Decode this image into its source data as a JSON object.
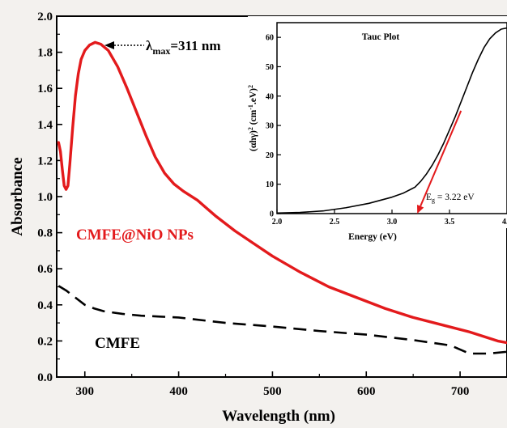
{
  "chart_data": {
    "main": {
      "type": "line",
      "xlabel": "Wavelength (nm)",
      "ylabel": "Absorbance",
      "xlim": [
        270,
        750
      ],
      "ylim": [
        0.0,
        2.0
      ],
      "xticks": [
        300,
        400,
        500,
        600,
        700
      ],
      "yticks": [
        0.0,
        0.2,
        0.4,
        0.6,
        0.8,
        1.0,
        1.2,
        1.4,
        1.6,
        1.8,
        2.0
      ],
      "grid": false,
      "series": [
        {
          "name": "CMFE@NiO NPs",
          "color": "#e31a1c",
          "style": "solid",
          "x": [
            272,
            274,
            276,
            278,
            280,
            282,
            284,
            287,
            290,
            293,
            296,
            300,
            305,
            311,
            317,
            325,
            335,
            345,
            355,
            365,
            375,
            385,
            395,
            405,
            420,
            440,
            460,
            480,
            500,
            530,
            560,
            590,
            620,
            650,
            680,
            710,
            740,
            750
          ],
          "y": [
            1.3,
            1.25,
            1.15,
            1.06,
            1.04,
            1.06,
            1.18,
            1.38,
            1.56,
            1.68,
            1.76,
            1.81,
            1.84,
            1.855,
            1.845,
            1.81,
            1.72,
            1.6,
            1.47,
            1.34,
            1.22,
            1.13,
            1.07,
            1.03,
            0.98,
            0.89,
            0.81,
            0.74,
            0.67,
            0.58,
            0.5,
            0.44,
            0.38,
            0.33,
            0.29,
            0.25,
            0.2,
            0.19
          ]
        },
        {
          "name": "CMFE",
          "color": "#000000",
          "style": "dashed",
          "x": [
            272,
            280,
            290,
            300,
            310,
            320,
            340,
            360,
            380,
            400,
            450,
            500,
            550,
            600,
            650,
            690,
            710,
            730,
            750
          ],
          "y": [
            0.505,
            0.48,
            0.44,
            0.4,
            0.38,
            0.365,
            0.35,
            0.34,
            0.335,
            0.33,
            0.3,
            0.28,
            0.255,
            0.235,
            0.205,
            0.175,
            0.13,
            0.13,
            0.14
          ]
        }
      ],
      "annotations": {
        "peak": {
          "prefix": "λ",
          "subscript": "max",
          "text": "=311  nm",
          "x": 311,
          "y": 1.855
        },
        "label_nio": {
          "text": "CMFE@NiO NPs",
          "color": "#e31a1c"
        },
        "label_cmfe": {
          "text": "CMFE",
          "color": "#000000"
        }
      }
    },
    "inset": {
      "type": "line",
      "title": "Tauc Plot",
      "xlabel": "Energy (eV)",
      "ylabel_parts": [
        "(αhγ)",
        "2",
        " (cm",
        "-1",
        ".eV)",
        "2"
      ],
      "xlim": [
        2.0,
        4.0
      ],
      "ylim": [
        0,
        65
      ],
      "xticks": [
        2.0,
        2.5,
        3.0,
        3.5
      ],
      "xtick_edge_label": "4.",
      "yticks": [
        0,
        10,
        20,
        30,
        40,
        50,
        60
      ],
      "series": [
        {
          "name": "",
          "color": "#000000",
          "x": [
            2.0,
            2.2,
            2.4,
            2.6,
            2.8,
            3.0,
            3.1,
            3.2,
            3.25,
            3.3,
            3.35,
            3.4,
            3.45,
            3.5,
            3.55,
            3.6,
            3.65,
            3.7,
            3.75,
            3.8,
            3.85,
            3.9,
            3.95,
            4.0
          ],
          "y": [
            0.2,
            0.4,
            0.9,
            2.0,
            3.5,
            5.6,
            7.0,
            9.0,
            11.0,
            13.5,
            16.5,
            20.0,
            24.0,
            28.5,
            33.0,
            38.0,
            43.0,
            48.0,
            52.5,
            56.5,
            59.5,
            61.5,
            62.8,
            63.2
          ]
        }
      ],
      "fit_line": {
        "color": "#e31a1c",
        "x": [
          3.22,
          3.6
        ],
        "y": [
          0,
          35
        ]
      },
      "eg_label": {
        "prefix": "E",
        "subscript": "g",
        "text": " = 3.22 eV"
      }
    }
  }
}
